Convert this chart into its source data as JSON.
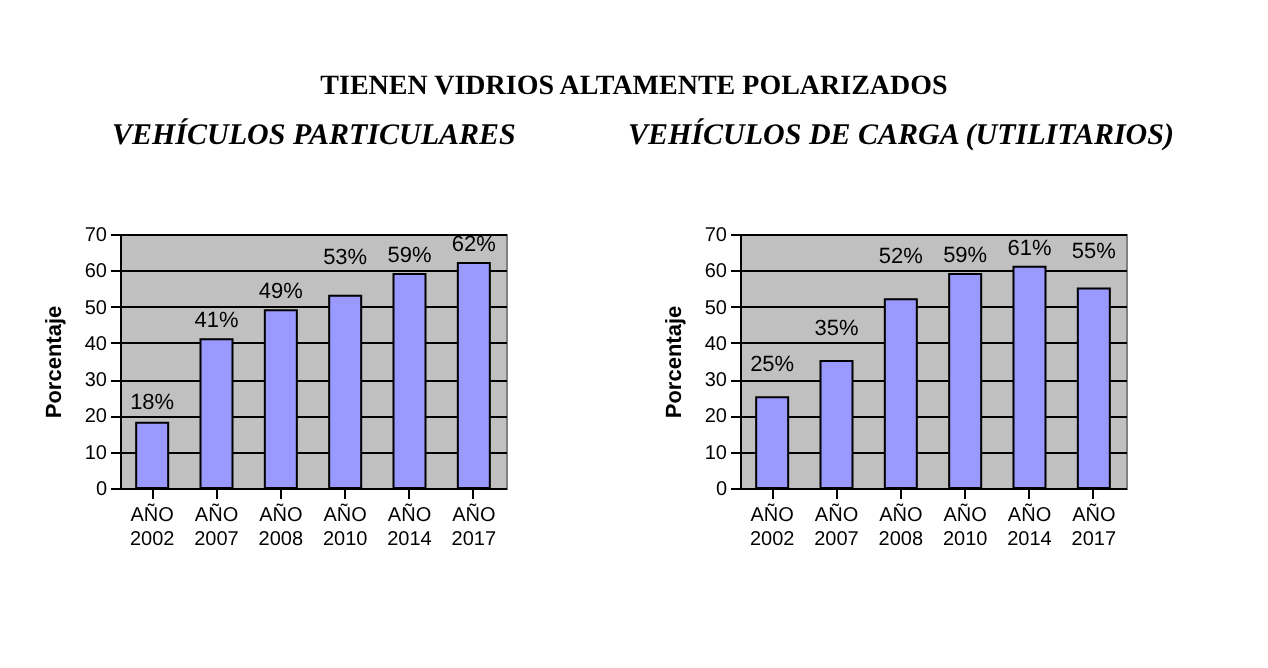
{
  "chart_data": [
    {
      "type": "bar",
      "title": "VEHÍCULOS PARTICULARES",
      "annotations": [
        "TIENEN VIDRIOS ALTAMENTE POLARIZADOS"
      ],
      "ylabel": "Porcentaje",
      "categories": [
        "AÑO 2002",
        "AÑO 2007",
        "AÑO 2008",
        "AÑO 2010",
        "AÑO 2014",
        "AÑO 2017"
      ],
      "values": [
        18,
        41,
        49,
        53,
        59,
        62
      ],
      "value_labels": [
        "18%",
        "41%",
        "49%",
        "53%",
        "59%",
        "62%"
      ],
      "color": "#9999ff",
      "ylim": [
        0,
        70
      ],
      "yticks": [
        0,
        10,
        20,
        30,
        40,
        50,
        60,
        70
      ],
      "grid": "y",
      "legend": false
    },
    {
      "type": "bar",
      "title": "VEHÍCULOS DE CARGA (UTILITARIOS)",
      "ylabel": "Porcentaje",
      "categories": [
        "AÑO 2002",
        "AÑO 2007",
        "AÑO 2008",
        "AÑO 2010",
        "AÑO 2014",
        "AÑO 2017"
      ],
      "values": [
        25,
        35,
        52,
        59,
        61,
        55
      ],
      "value_labels": [
        "25%",
        "35%",
        "52%",
        "59%",
        "61%",
        "55%"
      ],
      "color": "#9999ff",
      "ylim": [
        0,
        70
      ],
      "yticks": [
        0,
        10,
        20,
        30,
        40,
        50,
        60,
        70
      ],
      "grid": "y",
      "legend": false
    }
  ]
}
